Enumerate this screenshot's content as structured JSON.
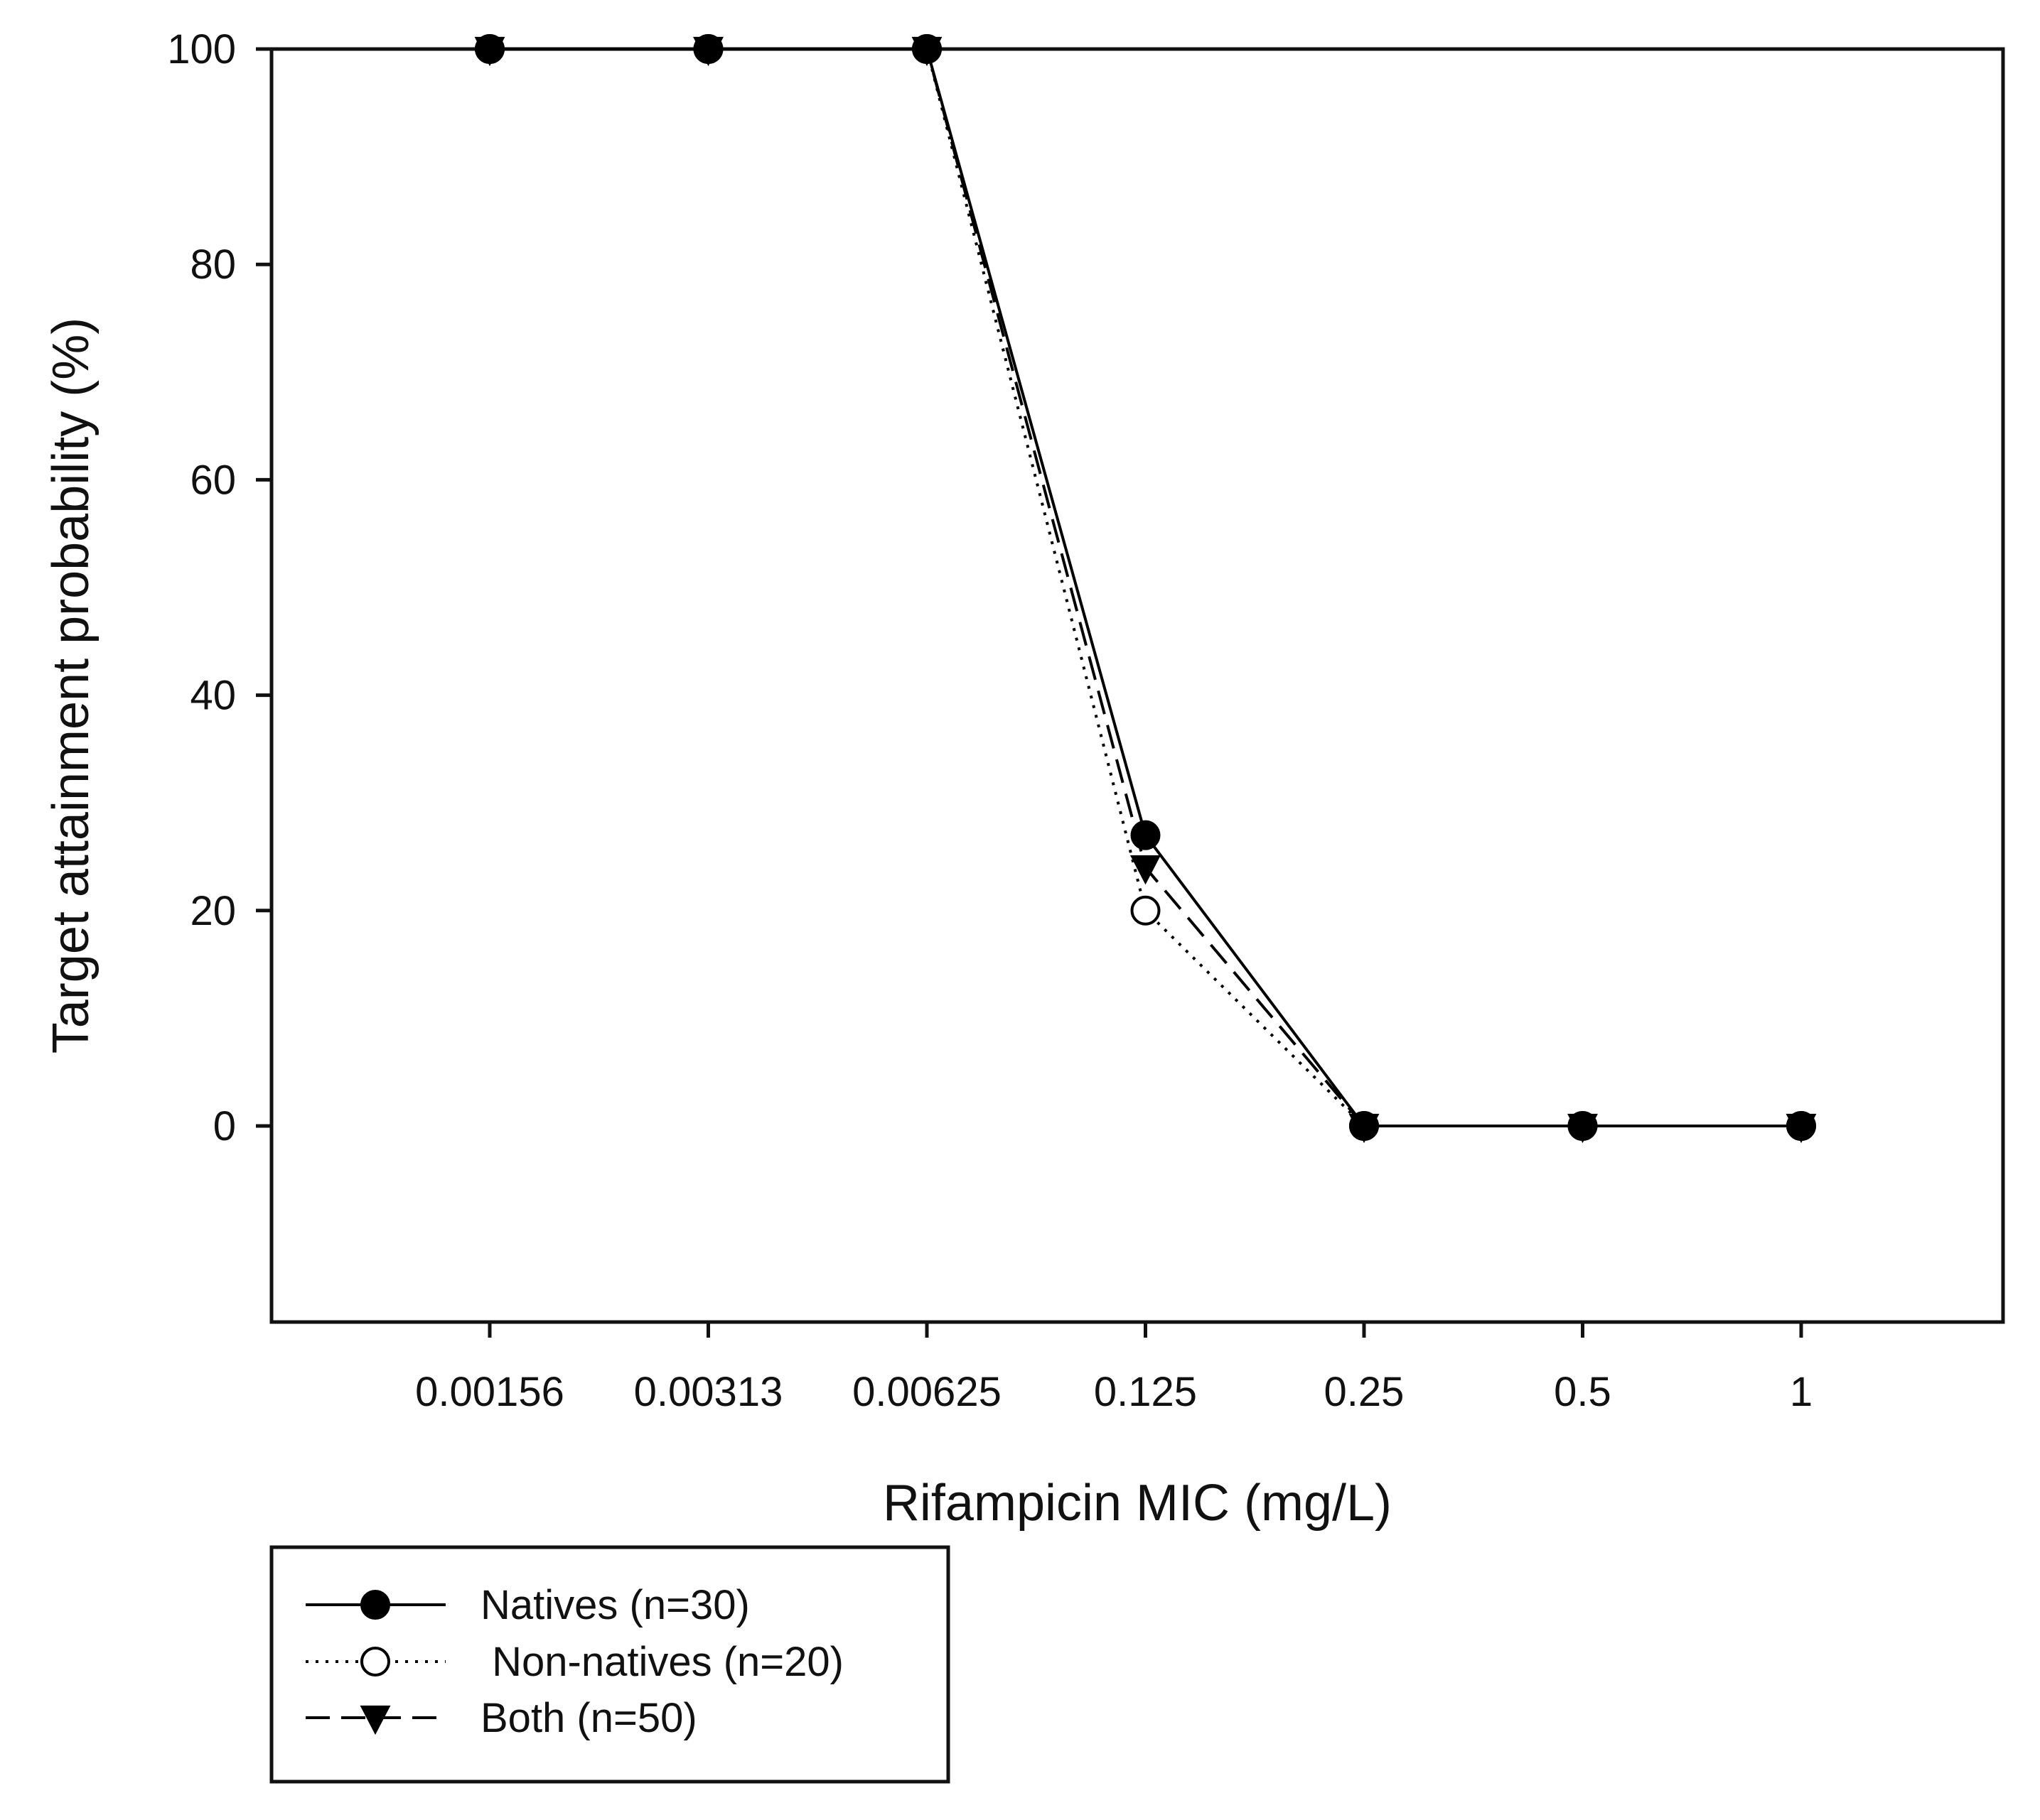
{
  "chart_data": {
    "type": "line",
    "title": "",
    "xlabel": "Rifampicin MIC (mg/L)",
    "ylabel": "Target attainment probability (%)",
    "x_scale": "categorical",
    "categories": [
      "0.00156",
      "0.00313",
      "0.00625",
      "0.125",
      "0.25",
      "0.5",
      "1"
    ],
    "ylim": [
      -18,
      100
    ],
    "yticks": [
      0,
      20,
      40,
      60,
      80,
      100
    ],
    "grid": false,
    "legend_position": "below",
    "series": [
      {
        "name": "Natives (n=30)",
        "values": [
          100,
          100,
          100,
          27,
          0,
          0,
          0
        ],
        "line_style": "solid",
        "marker": "filled-circle",
        "color": "#000000"
      },
      {
        "name": " Non-natives (n=20)",
        "values": [
          100,
          100,
          100,
          20,
          0,
          0,
          0
        ],
        "line_style": "dotted",
        "marker": "open-circle",
        "color": "#000000"
      },
      {
        "name": "Both (n=50)",
        "values": [
          100,
          100,
          100,
          24,
          0,
          0,
          0
        ],
        "line_style": "dashed",
        "marker": "filled-triangle-down",
        "color": "#000000"
      }
    ]
  }
}
